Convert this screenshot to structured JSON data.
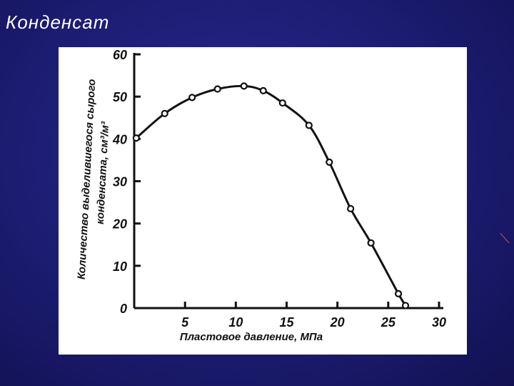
{
  "slide": {
    "title": "Конденсат"
  },
  "chart_data": {
    "type": "line",
    "title": "",
    "xlabel": "Пластовое давление, МПа",
    "ylabel_line1": "Количество выделившегося сырого",
    "ylabel_line2": "конденсата, см³/м³",
    "xlim": [
      0,
      30
    ],
    "ylim": [
      0,
      60
    ],
    "x_ticks": [
      "5",
      "10",
      "15",
      "20",
      "25",
      "30"
    ],
    "y_ticks": [
      "0",
      "10",
      "20",
      "30",
      "40",
      "50",
      "60"
    ],
    "grid": false,
    "series": [
      {
        "x": [
          0.2,
          3.0,
          5.7,
          8.2,
          10.8,
          12.7,
          14.6,
          17.2,
          19.2,
          21.3,
          23.3,
          26.0,
          26.7
        ],
        "y": [
          40.2,
          46.0,
          49.8,
          51.8,
          52.5,
          51.4,
          48.5,
          43.2,
          34.5,
          23.5,
          15.4,
          3.4,
          0.6
        ]
      }
    ],
    "colors": {
      "line": "#111111",
      "axis": "#111111",
      "marker_fill": "#ffffff"
    }
  }
}
